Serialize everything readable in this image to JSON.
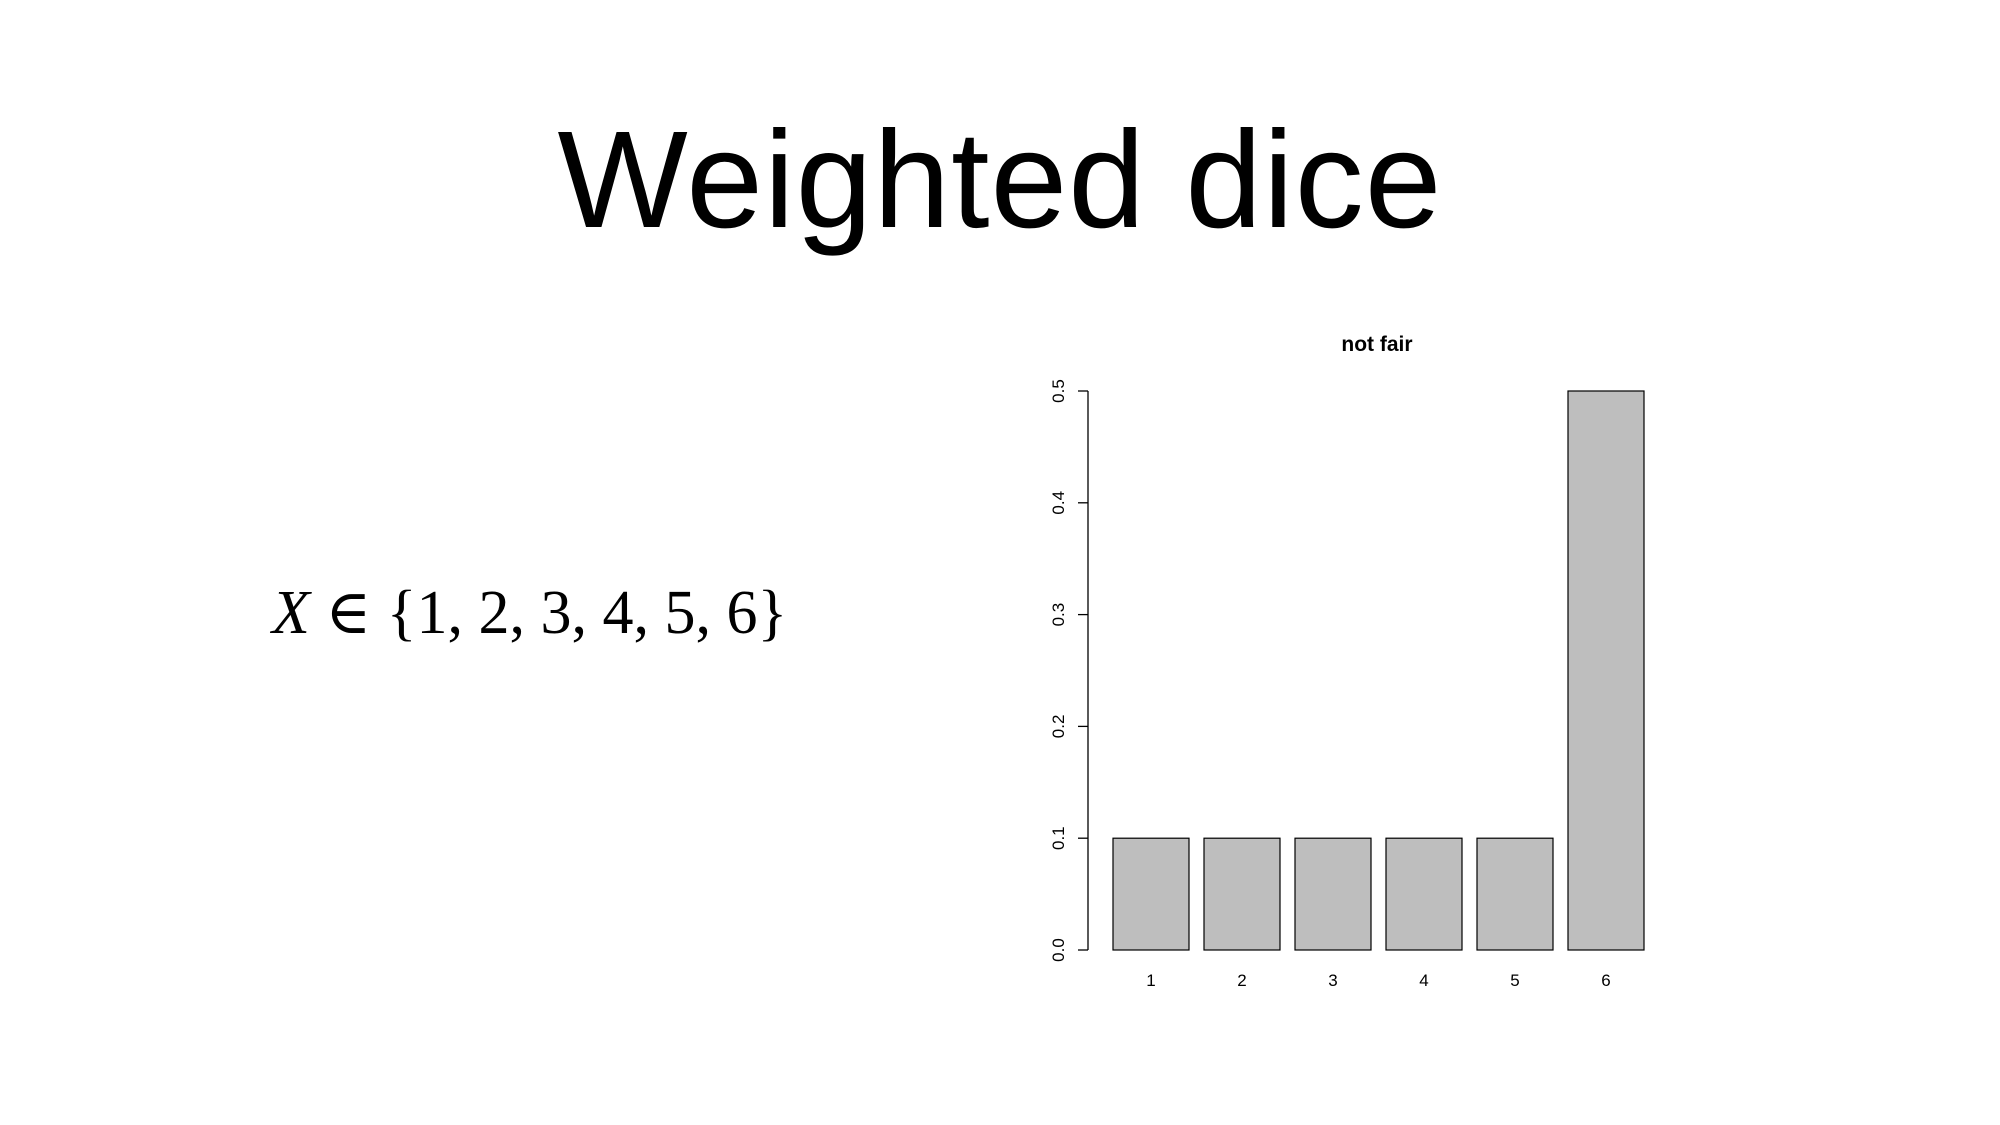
{
  "slide": {
    "title": "Weighted dice",
    "formula": {
      "variable": "X",
      "relation": "∈",
      "set": "{1, 2, 3, 4, 5, 6}"
    }
  },
  "chart_data": {
    "type": "bar",
    "title": "not fair",
    "xlabel": "",
    "ylabel": "",
    "categories": [
      "1",
      "2",
      "3",
      "4",
      "5",
      "6"
    ],
    "values": [
      0.1,
      0.1,
      0.1,
      0.1,
      0.1,
      0.5
    ],
    "ylim": [
      0,
      0.5
    ],
    "yticks": [
      "0.0",
      "0.1",
      "0.2",
      "0.3",
      "0.4",
      "0.5"
    ],
    "bar_color": "#bebebe",
    "grid": false,
    "legend": "none"
  }
}
